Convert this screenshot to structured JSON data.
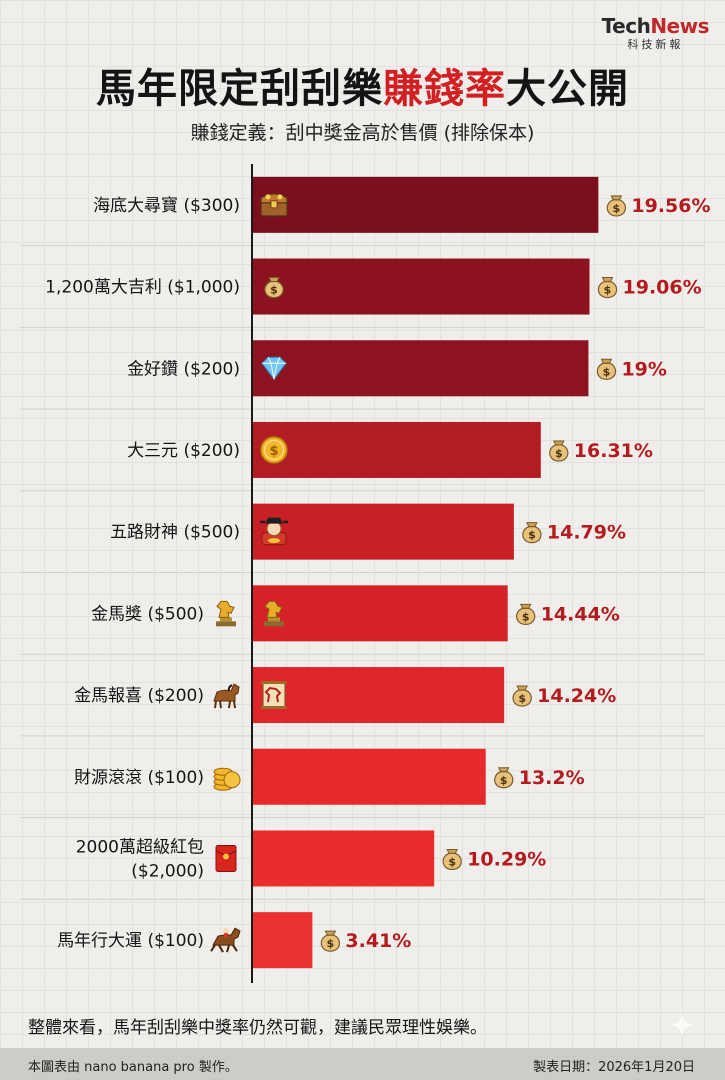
{
  "brand": {
    "name_part1": "Tech",
    "name_part2": "News",
    "sub": "科技新報"
  },
  "title": {
    "part1": "馬年限定刮刮樂",
    "highlight": "賺錢率",
    "part2": "大公開"
  },
  "subtitle": "賺錢定義：刮中獎金高於售價 (排除保本)",
  "chart_data": {
    "type": "bar",
    "orientation": "horizontal",
    "categories": [
      "海底大尋寶 ($300)",
      "1,200萬大吉利 ($1,000)",
      "金好鑽 ($200)",
      "大三元 ($200)",
      "五路財神 ($500)",
      "金馬獎 ($500)",
      "金馬報喜 ($200)",
      "財源滾滾 ($100)",
      "2000萬超級紅包 ($2,000)",
      "馬年行大運 ($100)"
    ],
    "category_lines": [
      [
        "海底大尋寶 ($300)"
      ],
      [
        "1,200萬大吉利 ($1,000)"
      ],
      [
        "金好鑽 ($200)"
      ],
      [
        "大三元 ($200)"
      ],
      [
        "五路財神 ($500)"
      ],
      [
        "金馬獎 ($500)"
      ],
      [
        "金馬報喜 ($200)"
      ],
      [
        "財源滾滾 ($100)"
      ],
      [
        "2000萬超級紅包",
        "($2,000)"
      ],
      [
        "馬年行大運 ($100)"
      ]
    ],
    "values": [
      19.56,
      19.06,
      19,
      16.31,
      14.79,
      14.44,
      14.24,
      13.2,
      10.29,
      3.41
    ],
    "value_labels": [
      "19.56%",
      "19.06%",
      "19%",
      "16.31%",
      "14.79%",
      "14.44%",
      "14.24%",
      "13.2%",
      "10.29%",
      "3.41%"
    ],
    "unit": "%",
    "xlim": [
      0,
      20.5
    ],
    "grid": true,
    "legend": "none",
    "bar_colors": [
      "#7a0f1e",
      "#8c1220",
      "#8d1321",
      "#b41c24",
      "#c91f26",
      "#d52228",
      "#df2529",
      "#e62a2b",
      "#ea2c2c",
      "#ec3131"
    ],
    "bar_icons": [
      "treasure-chest-icon",
      "money-bag-icon",
      "diamond-icon",
      "gold-coin-icon",
      "wealth-god-icon",
      "horse-trophy-icon",
      "horse-scroll-icon",
      "",
      "",
      ""
    ],
    "label_icons": [
      "",
      "",
      "",
      "",
      "",
      "horse-trophy-icon",
      "horse-icon",
      "coin-stack-icon",
      "red-envelope-icon",
      "running-horse-icon"
    ],
    "value_icon": "money-bag-icon"
  },
  "footer": {
    "note": "整體來看，馬年刮刮樂中獎率仍然可觀，建議民眾理性娛樂。",
    "credit": "本圖表由 nano banana pro 製作。",
    "date": "製表日期：2026年1月20日"
  }
}
